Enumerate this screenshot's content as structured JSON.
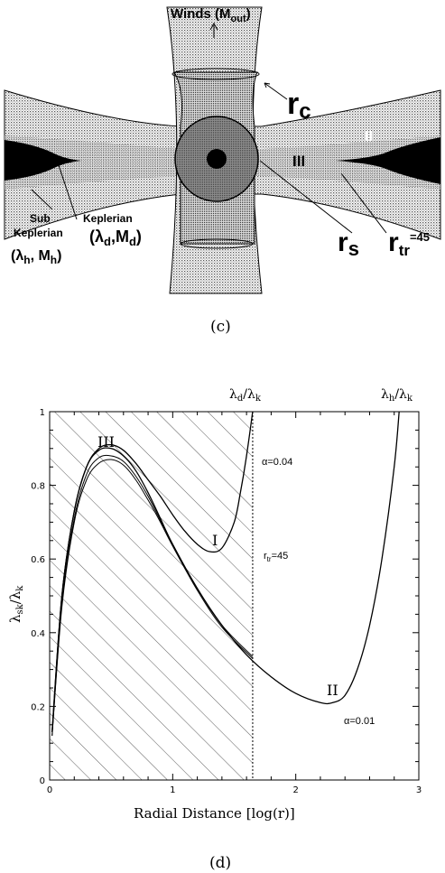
{
  "panel_c": {
    "caption": "(c)",
    "winds_label": "Winds (",
    "winds_m": "M",
    "winds_sub": "out",
    "winds_close": ")",
    "rc_label": "r",
    "rc_sub": "c",
    "rs_label": "r",
    "rs_sub": "s",
    "rtr_label": "r",
    "rtr_sub": "tr",
    "rtr_value": "=45",
    "region_III": "III",
    "region_II": "II",
    "sub_label": "Sub",
    "kep_label_left": "Keplerian",
    "keplerian_label": "Keplerian",
    "lambda_d": "(λ",
    "lambda_d_sub": "d",
    "mdot_d": ",M",
    "mdot_d_sub": "d",
    "paren_close": ")",
    "lambda_h": "(λ",
    "lambda_h_sub": "h",
    "mdot_h": ", M",
    "mdot_h_sub": "h",
    "colors": {
      "dark": "#000000",
      "stipple": "#b0b0b0",
      "sphere": "#7a7a7a"
    }
  },
  "panel_d": {
    "caption": "(d)",
    "top_label_left": "λ",
    "top_label_left_sub": "d",
    "top_label_left_rest": "/λ",
    "top_label_left_sub2": "k",
    "top_label_right": "λ",
    "top_label_right_sub": "h",
    "top_label_right_rest": "/λ",
    "top_label_right_sub2": "k",
    "xlabel": "Radial Distance [log(r)]",
    "ylabel_main": "λ",
    "ylabel_sub": "sk",
    "ylabel_rest": "/λ",
    "ylabel_sub2": "k",
    "annotations": {
      "III": "III",
      "I": "I",
      "II": "II",
      "alpha_004": "α=0.04",
      "alpha_001": "α=0.01",
      "rtr": "r",
      "rtr_sub": "tr",
      "rtr_val": "=45"
    }
  },
  "chart_data": {
    "type": "line",
    "xlabel": "Radial Distance [log(r)]",
    "ylabel": "λsk/λk",
    "xlim": [
      0,
      3
    ],
    "ylim": [
      0,
      1
    ],
    "xticks": [
      0,
      1,
      2,
      3
    ],
    "yticks": [
      0,
      0.2,
      0.4,
      0.6,
      0.8,
      1
    ],
    "ytick_labels": [
      "0",
      "0.2",
      "0.4",
      "0.6",
      "0.8",
      "1"
    ],
    "xtick_labels": [
      "0",
      "1",
      "2",
      "3"
    ],
    "hatched_region": [
      0,
      1.65
    ],
    "vline_x": 1.65,
    "series": [
      {
        "name": "I",
        "x": [
          0.02,
          0.1,
          0.2,
          0.3,
          0.4,
          0.5,
          0.6,
          0.7,
          0.8,
          0.9,
          1.0,
          1.1,
          1.2,
          1.3,
          1.4,
          1.5,
          1.55,
          1.6,
          1.65
        ],
        "y": [
          0.13,
          0.5,
          0.73,
          0.85,
          0.9,
          0.91,
          0.895,
          0.86,
          0.815,
          0.77,
          0.72,
          0.675,
          0.64,
          0.62,
          0.63,
          0.7,
          0.78,
          0.88,
          1.0
        ]
      },
      {
        "name": "II",
        "x": [
          0.02,
          0.1,
          0.2,
          0.3,
          0.4,
          0.5,
          0.6,
          0.7,
          0.8,
          0.9,
          1.0,
          1.2,
          1.4,
          1.6,
          1.8,
          2.0,
          2.2,
          2.3,
          2.4,
          2.5,
          2.6,
          2.7,
          2.8,
          2.84
        ],
        "y": [
          0.13,
          0.5,
          0.73,
          0.85,
          0.895,
          0.9,
          0.88,
          0.84,
          0.78,
          0.71,
          0.64,
          0.52,
          0.42,
          0.34,
          0.28,
          0.235,
          0.21,
          0.21,
          0.23,
          0.3,
          0.42,
          0.6,
          0.85,
          1.0
        ]
      },
      {
        "name": "",
        "x": [
          0.02,
          0.1,
          0.2,
          0.3,
          0.4,
          0.5,
          0.6,
          0.7,
          0.8,
          0.9,
          1.0,
          1.2,
          1.4,
          1.65
        ],
        "y": [
          0.12,
          0.48,
          0.71,
          0.83,
          0.875,
          0.88,
          0.865,
          0.825,
          0.77,
          0.705,
          0.64,
          0.52,
          0.42,
          0.335
        ]
      },
      {
        "name": "",
        "x": [
          0.02,
          0.1,
          0.2,
          0.3,
          0.4,
          0.5,
          0.6,
          0.7,
          0.8,
          0.9,
          1.0,
          1.2,
          1.4,
          1.65
        ],
        "y": [
          0.12,
          0.47,
          0.7,
          0.815,
          0.86,
          0.87,
          0.855,
          0.815,
          0.76,
          0.7,
          0.635,
          0.515,
          0.415,
          0.33
        ]
      }
    ]
  }
}
